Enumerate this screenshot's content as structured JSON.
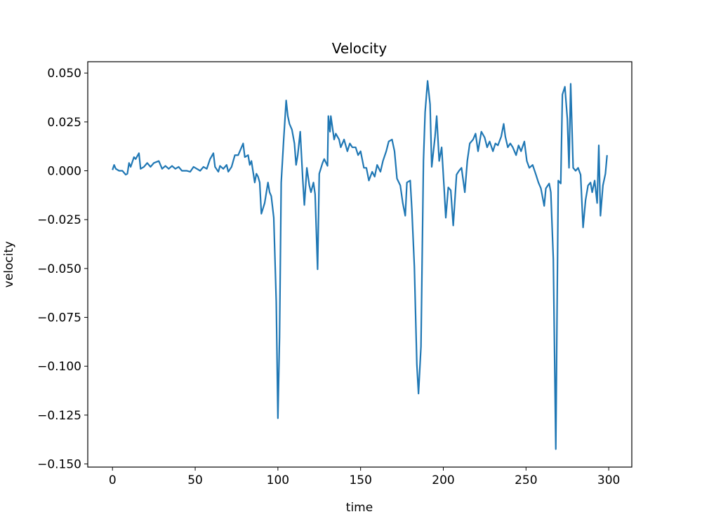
{
  "chart_data": {
    "type": "line",
    "title": "Velocity",
    "xlabel": "time",
    "ylabel": "velocity",
    "xlim": [
      -14.95,
      313.95
    ],
    "ylim": [
      -0.1516,
      0.0558
    ],
    "xticks": [
      0,
      50,
      100,
      150,
      200,
      250,
      300
    ],
    "yticks": [
      {
        "value": 0.05,
        "label": "0.050"
      },
      {
        "value": 0.025,
        "label": "0.025"
      },
      {
        "value": 0,
        "label": "0.000"
      },
      {
        "value": -0.025,
        "label": "−0.025"
      },
      {
        "value": -0.05,
        "label": "−0.050"
      },
      {
        "value": -0.075,
        "label": "−0.075"
      },
      {
        "value": -0.1,
        "label": "−0.100"
      },
      {
        "value": -0.125,
        "label": "−0.125"
      },
      {
        "value": -0.15,
        "label": "−0.150"
      }
    ],
    "grid": false,
    "series": [
      {
        "color": "#1f77b4",
        "x": [
          0,
          1,
          2,
          4,
          6,
          8,
          9,
          10,
          11,
          13,
          14,
          16,
          17,
          19,
          21,
          23,
          25,
          28,
          30,
          32,
          34,
          36,
          38,
          40,
          42,
          45,
          47,
          49,
          51,
          53,
          55,
          57,
          59,
          61,
          62,
          64,
          65,
          67,
          69,
          70,
          72,
          74,
          76,
          77,
          79,
          80,
          82,
          83,
          84,
          86,
          87,
          88,
          89,
          90,
          92,
          94,
          95,
          96,
          97.5,
          99,
          100,
          101,
          102,
          103.5,
          105,
          106,
          107,
          108.5,
          110,
          111,
          112,
          113.5,
          115,
          116,
          117.5,
          119,
          120,
          121.5,
          122.5,
          124,
          125,
          127,
          128,
          130,
          130.5,
          131.5,
          132,
          134,
          135,
          137,
          138,
          140,
          142,
          143.5,
          145,
          147,
          148.5,
          150,
          152,
          153.5,
          155,
          157,
          158.5,
          160,
          162,
          163.5,
          165.5,
          167,
          169,
          170.5,
          172,
          174,
          175.5,
          177,
          178,
          180,
          181,
          182.5,
          184,
          185,
          186.5,
          188,
          189,
          190.5,
          192,
          193,
          195,
          196,
          197.5,
          199,
          200.5,
          201.5,
          203,
          204.5,
          206,
          208,
          209.5,
          211,
          213,
          214.5,
          216,
          218,
          219.5,
          221,
          223,
          225,
          226.5,
          228,
          230,
          231.5,
          233,
          235,
          236.5,
          237.5,
          239,
          240.5,
          242,
          244,
          245.5,
          247,
          249,
          250.5,
          252,
          254,
          256,
          257.5,
          259,
          261,
          262,
          264,
          265,
          266.5,
          268,
          269.5,
          271,
          272,
          273.5,
          275,
          276,
          277,
          278.5,
          280,
          281.5,
          283,
          284.5,
          286,
          287.5,
          289,
          290,
          291.5,
          293,
          294,
          295,
          296.5,
          298,
          299
        ],
        "values": [
          0.0004,
          0.003,
          0.001,
          0,
          0,
          -0.002,
          -0.0015,
          0.004,
          0.002,
          0.007,
          0.006,
          0.009,
          0.001,
          0.002,
          0.004,
          0.002,
          0.004,
          0.005,
          0.001,
          0.0025,
          0.001,
          0.0025,
          0.001,
          0.002,
          0,
          0,
          -0.0005,
          0.002,
          0.001,
          0,
          0.002,
          0.001,
          0.006,
          0.009,
          0.002,
          -0.0005,
          0.0025,
          0.001,
          0.003,
          -0.0005,
          0.002,
          0.008,
          0.008,
          0.01,
          0.014,
          0.007,
          0.008,
          0.003,
          0.005,
          -0.006,
          -0.0015,
          -0.003,
          -0.006,
          -0.022,
          -0.0165,
          -0.006,
          -0.011,
          -0.013,
          -0.024,
          -0.067,
          -0.1266,
          -0.085,
          -0.006,
          0.016,
          0.036,
          0.028,
          0.024,
          0.021,
          0.014,
          0.003,
          0.008,
          0.02,
          -0.004,
          -0.0175,
          0.0015,
          -0.0075,
          -0.011,
          -0.006,
          -0.012,
          -0.0504,
          -0.0015,
          0.004,
          0.006,
          0.0025,
          0.028,
          0.02,
          0.028,
          0.016,
          0.019,
          0.016,
          0.012,
          0.016,
          0.01,
          0.014,
          0.012,
          0.012,
          0.008,
          0.01,
          0.0015,
          0.0015,
          -0.005,
          -0.0005,
          -0.003,
          0.003,
          -0.0005,
          0.005,
          0.01,
          0.015,
          0.016,
          0.01,
          -0.004,
          -0.0075,
          -0.0165,
          -0.023,
          -0.006,
          -0.005,
          -0.02,
          -0.049,
          -0.099,
          -0.114,
          -0.09,
          0.005,
          0.03,
          0.046,
          0.034,
          0.002,
          0.0175,
          0.028,
          0.005,
          0.012,
          -0.009,
          -0.024,
          -0.0085,
          -0.01,
          -0.028,
          -0.002,
          0,
          0.0015,
          -0.011,
          0.005,
          0.014,
          0.016,
          0.019,
          0.01,
          0.02,
          0.017,
          0.012,
          0.015,
          0.01,
          0.014,
          0.013,
          0.0175,
          0.024,
          0.0175,
          0.012,
          0.014,
          0.012,
          0.008,
          0.013,
          0.01,
          0.015,
          0.005,
          0.0015,
          0.003,
          -0.002,
          -0.006,
          -0.009,
          -0.018,
          -0.009,
          -0.0065,
          -0.011,
          -0.045,
          -0.1424,
          -0.005,
          -0.0065,
          0.039,
          0.043,
          0.0265,
          0.0015,
          0.0445,
          0.0015,
          0,
          0.0015,
          -0.002,
          -0.029,
          -0.015,
          -0.0075,
          -0.006,
          -0.011,
          -0.005,
          -0.0165,
          0.013,
          -0.023,
          -0.0075,
          -0.0015,
          0.008
        ]
      }
    ]
  }
}
